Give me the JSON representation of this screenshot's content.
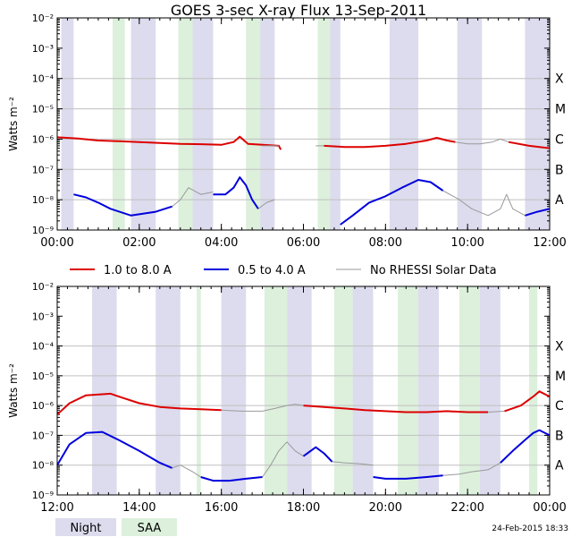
{
  "title": "GOES 3-sec X-ray Flux   13-Sep-2011",
  "timestamp": "24-Feb-2015 18:33",
  "colors": {
    "long": "#dd0000",
    "short": "#0000dd",
    "norhessi": "#999999",
    "night": "#dcdcee",
    "saa": "#dcf0dc",
    "grid": "#c0c0c0"
  },
  "legend": {
    "long": "1.0 to 8.0 A",
    "short": "0.5 to 4.0 A",
    "norhessi": "No RHESSI Solar Data",
    "night": "Night",
    "saa": "SAA"
  },
  "chart_data": [
    {
      "type": "line",
      "panel": "top",
      "ylabel": "Watts m⁻²",
      "y_scale": "log",
      "ylim_exp": [
        -9,
        -2
      ],
      "y_ticks": [
        "10⁻²",
        "10⁻³",
        "10⁻⁴",
        "10⁻⁵",
        "10⁻⁶",
        "10⁻⁷",
        "10⁻⁸",
        "10⁻⁹"
      ],
      "flare_classes": [
        {
          "label": "X",
          "exp": -4
        },
        {
          "label": "M",
          "exp": -5
        },
        {
          "label": "C",
          "exp": -6
        },
        {
          "label": "B",
          "exp": -7
        },
        {
          "label": "A",
          "exp": -8
        }
      ],
      "xlim_hours": [
        0,
        12
      ],
      "x_ticks": [
        "00:00",
        "02:00",
        "04:00",
        "06:00",
        "08:00",
        "10:00",
        "12:00"
      ],
      "night_hours": [
        [
          0.1,
          0.4
        ],
        [
          1.8,
          2.4
        ],
        [
          3.3,
          3.8
        ],
        [
          4.9,
          5.3
        ],
        [
          6.5,
          6.9
        ],
        [
          8.1,
          8.8
        ],
        [
          9.75,
          10.35
        ],
        [
          11.4,
          12
        ]
      ],
      "saa_hours": [
        [
          1.35,
          1.65
        ],
        [
          2.95,
          3.3
        ],
        [
          4.6,
          4.95
        ],
        [
          6.35,
          6.65
        ]
      ],
      "series": [
        {
          "name": "1.0 to 8.0 A",
          "color": "#dd0000",
          "points": [
            [
              0,
              1.15e-06
            ],
            [
              0.5,
              1.05e-06
            ],
            [
              1,
              9e-07
            ],
            [
              1.5,
              8.5e-07
            ],
            [
              2,
              8e-07
            ],
            [
              2.5,
              7.5e-07
            ],
            [
              3,
              7e-07
            ],
            [
              3.5,
              6.8e-07
            ],
            [
              4,
              6.5e-07
            ],
            [
              4.3,
              8e-07
            ],
            [
              4.45,
              1.2e-06
            ],
            [
              4.65,
              7e-07
            ],
            [
              5,
              6.5e-07
            ],
            [
              5.4,
              6e-07
            ],
            [
              5.45,
              4.5e-07
            ]
          ]
        },
        {
          "name": "1.0 to 8.0 A",
          "color": "#dd0000",
          "points": [
            [
              6.5,
              6e-07
            ],
            [
              7,
              5.5e-07
            ],
            [
              7.5,
              5.5e-07
            ],
            [
              8,
              6e-07
            ],
            [
              8.5,
              7e-07
            ],
            [
              9,
              9e-07
            ],
            [
              9.25,
              1.1e-06
            ],
            [
              9.5,
              9e-07
            ],
            [
              9.7,
              8e-07
            ]
          ]
        },
        {
          "name": "No RHESSI Solar Data",
          "color": "#999999",
          "points": [
            [
              5.0,
              6e-07
            ],
            [
              5.4,
              6e-07
            ]
          ]
        },
        {
          "name": "No RHESSI Solar Data",
          "color": "#999999",
          "points": [
            [
              6.3,
              6e-07
            ],
            [
              6.5,
              6e-07
            ]
          ]
        },
        {
          "name": "No RHESSI Solar Data",
          "color": "#999999",
          "points": [
            [
              9.7,
              8e-07
            ],
            [
              10,
              7e-07
            ],
            [
              10.3,
              7e-07
            ],
            [
              10.6,
              8e-07
            ],
            [
              10.8,
              1e-06
            ],
            [
              11,
              8e-07
            ]
          ]
        },
        {
          "name": "1.0 to 8.0 A",
          "color": "#dd0000",
          "points": [
            [
              11,
              8e-07
            ],
            [
              11.5,
              6e-07
            ],
            [
              12,
              5e-07
            ]
          ]
        },
        {
          "name": "0.5 to 4.0 A",
          "color": "#0000dd",
          "points": [
            [
              0.4,
              1.5e-08
            ],
            [
              0.7,
              1.2e-08
            ],
            [
              1,
              8e-09
            ],
            [
              1.3,
              5e-09
            ],
            [
              1.8,
              3e-09
            ],
            [
              2.4,
              4e-09
            ],
            [
              2.8,
              6e-09
            ]
          ]
        },
        {
          "name": "No RHESSI Solar Data",
          "color": "#999999",
          "points": [
            [
              2.8,
              6e-09
            ],
            [
              3.0,
              1e-08
            ],
            [
              3.2,
              2.5e-08
            ],
            [
              3.5,
              1.5e-08
            ],
            [
              3.8,
              1.8e-08
            ]
          ]
        },
        {
          "name": "0.5 to 4.0 A",
          "color": "#0000dd",
          "points": [
            [
              3.8,
              1.5e-08
            ],
            [
              4.1,
              1.5e-08
            ],
            [
              4.3,
              2.5e-08
            ],
            [
              4.45,
              5.5e-08
            ],
            [
              4.6,
              3e-08
            ],
            [
              4.75,
              1e-08
            ],
            [
              4.9,
              5e-09
            ]
          ]
        },
        {
          "name": "No RHESSI Solar Data",
          "color": "#999999",
          "points": [
            [
              4.9,
              5e-09
            ],
            [
              5.1,
              8e-09
            ],
            [
              5.3,
              1e-08
            ]
          ]
        },
        {
          "name": "0.5 to 4.0 A",
          "color": "#0000dd",
          "points": [
            [
              6.9,
              1.5e-09
            ],
            [
              7.2,
              3e-09
            ],
            [
              7.6,
              8e-09
            ],
            [
              8.0,
              1.3e-08
            ],
            [
              8.4,
              2.5e-08
            ],
            [
              8.8,
              4.5e-08
            ],
            [
              9.1,
              3.8e-08
            ],
            [
              9.4,
              2e-08
            ]
          ]
        },
        {
          "name": "No RHESSI Solar Data",
          "color": "#999999",
          "points": [
            [
              9.4,
              2e-08
            ],
            [
              9.8,
              1e-08
            ],
            [
              10.1,
              5e-09
            ],
            [
              10.5,
              3e-09
            ],
            [
              10.8,
              5e-09
            ],
            [
              10.95,
              1.5e-08
            ],
            [
              11.1,
              5e-09
            ],
            [
              11.4,
              3e-09
            ]
          ]
        },
        {
          "name": "0.5 to 4.0 A",
          "color": "#0000dd",
          "points": [
            [
              11.4,
              3e-09
            ],
            [
              11.7,
              4e-09
            ],
            [
              12,
              5e-09
            ]
          ]
        }
      ]
    },
    {
      "type": "line",
      "panel": "bottom",
      "ylabel": "Watts m⁻²",
      "y_scale": "log",
      "ylim_exp": [
        -9,
        -2
      ],
      "y_ticks": [
        "10⁻²",
        "10⁻³",
        "10⁻⁴",
        "10⁻⁵",
        "10⁻⁶",
        "10⁻⁷",
        "10⁻⁸",
        "10⁻⁹"
      ],
      "flare_classes": [
        {
          "label": "X",
          "exp": -4
        },
        {
          "label": "M",
          "exp": -5
        },
        {
          "label": "C",
          "exp": -6
        },
        {
          "label": "B",
          "exp": -7
        },
        {
          "label": "A",
          "exp": -8
        }
      ],
      "xlim_hours": [
        12,
        24
      ],
      "x_ticks": [
        "12:00",
        "14:00",
        "16:00",
        "18:00",
        "20:00",
        "22:00",
        "00:00"
      ],
      "night_hours": [
        [
          12.85,
          13.45
        ],
        [
          14.4,
          15.0
        ],
        [
          16.0,
          16.6
        ],
        [
          17.6,
          18.2
        ],
        [
          19.2,
          19.7
        ],
        [
          20.8,
          21.3
        ],
        [
          22.3,
          22.8
        ]
      ],
      "saa_hours": [
        [
          15.4,
          15.5
        ],
        [
          17.05,
          17.6
        ],
        [
          18.75,
          19.2
        ],
        [
          20.3,
          20.8
        ],
        [
          21.8,
          22.3
        ],
        [
          23.5,
          23.7
        ]
      ],
      "series": [
        {
          "name": "1.0 to 8.0 A",
          "color": "#dd0000",
          "points": [
            [
              12,
              5e-07
            ],
            [
              12.3,
              1.2e-06
            ],
            [
              12.7,
              2.2e-06
            ],
            [
              13.3,
              2.5e-06
            ],
            [
              13.6,
              1.8e-06
            ],
            [
              14,
              1.2e-06
            ],
            [
              14.5,
              9e-07
            ],
            [
              15,
              8e-07
            ],
            [
              15.5,
              7.5e-07
            ],
            [
              16,
              7e-07
            ]
          ]
        },
        {
          "name": "No RHESSI Solar Data",
          "color": "#999999",
          "points": [
            [
              16,
              7e-07
            ],
            [
              16.5,
              6.5e-07
            ],
            [
              17,
              6.5e-07
            ],
            [
              17.3,
              8e-07
            ],
            [
              17.6,
              1e-06
            ],
            [
              17.8,
              1.1e-06
            ],
            [
              18,
              1e-06
            ]
          ]
        },
        {
          "name": "1.0 to 8.0 A",
          "color": "#dd0000",
          "points": [
            [
              18,
              1e-06
            ],
            [
              18.5,
              9e-07
            ],
            [
              19,
              8e-07
            ],
            [
              19.5,
              7e-07
            ],
            [
              20,
              6.5e-07
            ],
            [
              20.5,
              6e-07
            ],
            [
              21,
              6e-07
            ],
            [
              21.5,
              6.5e-07
            ],
            [
              22,
              6e-07
            ],
            [
              22.5,
              6e-07
            ]
          ]
        },
        {
          "name": "No RHESSI Solar Data",
          "color": "#999999",
          "points": [
            [
              22.5,
              6e-07
            ],
            [
              22.9,
              6.5e-07
            ]
          ]
        },
        {
          "name": "1.0 to 8.0 A",
          "color": "#dd0000",
          "points": [
            [
              22.9,
              6.5e-07
            ],
            [
              23.3,
              1e-06
            ],
            [
              23.6,
              2e-06
            ],
            [
              23.75,
              3e-06
            ],
            [
              24,
              2e-06
            ]
          ]
        },
        {
          "name": "0.5 to 4.0 A",
          "color": "#0000dd",
          "points": [
            [
              12,
              1e-08
            ],
            [
              12.3,
              5e-08
            ],
            [
              12.7,
              1.2e-07
            ],
            [
              13.1,
              1.3e-07
            ],
            [
              13.5,
              7e-08
            ],
            [
              14,
              3e-08
            ],
            [
              14.5,
              1.2e-08
            ],
            [
              14.8,
              8e-09
            ]
          ]
        },
        {
          "name": "No RHESSI Solar Data",
          "color": "#999999",
          "points": [
            [
              14.8,
              8e-09
            ],
            [
              15,
              1e-08
            ],
            [
              15.3,
              6e-09
            ],
            [
              15.5,
              4e-09
            ]
          ]
        },
        {
          "name": "0.5 to 4.0 A",
          "color": "#0000dd",
          "points": [
            [
              15.5,
              4e-09
            ],
            [
              15.8,
              3e-09
            ],
            [
              16.2,
              3e-09
            ],
            [
              16.6,
              3.5e-09
            ],
            [
              17,
              4e-09
            ]
          ]
        },
        {
          "name": "No RHESSI Solar Data",
          "color": "#999999",
          "points": [
            [
              17,
              4e-09
            ],
            [
              17.2,
              1e-08
            ],
            [
              17.4,
              3e-08
            ],
            [
              17.6,
              6e-08
            ],
            [
              17.8,
              3e-08
            ],
            [
              18.0,
              2e-08
            ]
          ]
        },
        {
          "name": "0.5 to 4.0 A",
          "color": "#0000dd",
          "points": [
            [
              18.0,
              2e-08
            ],
            [
              18.3,
              4e-08
            ],
            [
              18.5,
              2.5e-08
            ],
            [
              18.7,
              1.3e-08
            ]
          ]
        },
        {
          "name": "No RHESSI Solar Data",
          "color": "#999999",
          "points": [
            [
              18.7,
              1.3e-08
            ],
            [
              19,
              1.2e-08
            ],
            [
              19.4,
              1.1e-08
            ],
            [
              19.7,
              1e-08
            ]
          ]
        },
        {
          "name": "0.5 to 4.0 A",
          "color": "#0000dd",
          "points": [
            [
              19.7,
              4e-09
            ],
            [
              20,
              3.5e-09
            ],
            [
              20.5,
              3.5e-09
            ],
            [
              21,
              4e-09
            ],
            [
              21.4,
              4.5e-09
            ]
          ]
        },
        {
          "name": "No RHESSI Solar Data",
          "color": "#999999",
          "points": [
            [
              21.4,
              4.5e-09
            ],
            [
              21.8,
              5e-09
            ],
            [
              22.1,
              6e-09
            ],
            [
              22.5,
              7e-09
            ],
            [
              22.8,
              1.2e-08
            ]
          ]
        },
        {
          "name": "0.5 to 4.0 A",
          "color": "#0000dd",
          "points": [
            [
              22.8,
              1.2e-08
            ],
            [
              23.1,
              3e-08
            ],
            [
              23.4,
              7e-08
            ],
            [
              23.6,
              1.2e-07
            ],
            [
              23.75,
              1.5e-07
            ],
            [
              24,
              1e-07
            ]
          ]
        }
      ]
    }
  ]
}
